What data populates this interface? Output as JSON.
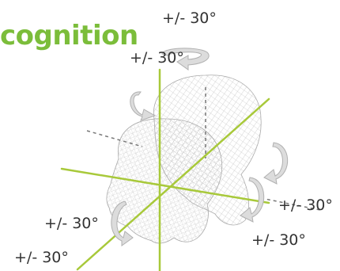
{
  "title": "cognition",
  "labels": {
    "top": "+/- 30°",
    "upper_left": "+/- 30°",
    "right": "+/- 30°",
    "lower_right": "+/- 30°",
    "lower_left": "+/- 30°",
    "bottom_left": "+/- 30°"
  },
  "colors": {
    "title": "#7bbd3a",
    "axis": "#a8c93a",
    "mesh": "#bdbdbd",
    "arrow": "#d9d9d9",
    "text": "#333333"
  }
}
